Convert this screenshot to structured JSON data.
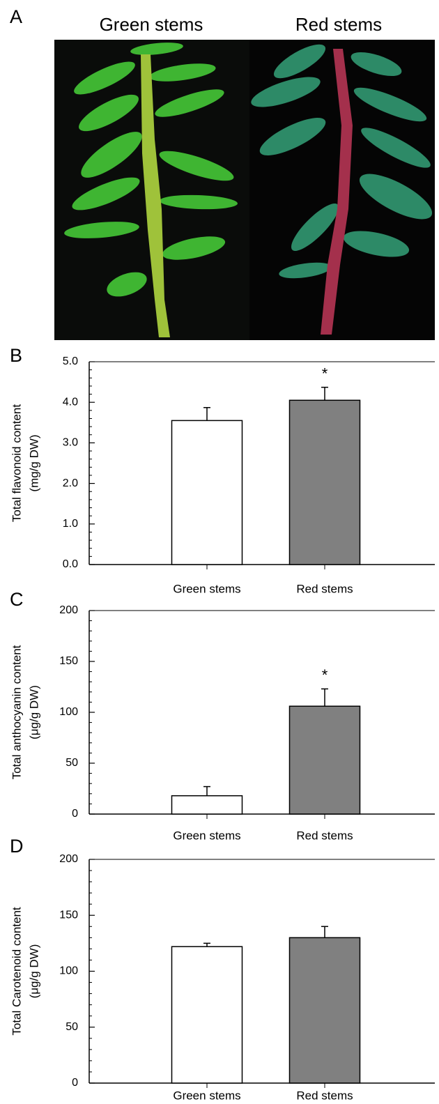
{
  "panel_a": {
    "label": "A",
    "captions": [
      "Green stems",
      "Red stems"
    ]
  },
  "chart_data": [
    {
      "type": "bar",
      "panel_label": "B",
      "y_label": [
        "Total flavonoid content",
        "(mg/g DW)"
      ],
      "categories": [
        "Green stems",
        "Red stems"
      ],
      "values": [
        3.55,
        4.05
      ],
      "errors": [
        0.32,
        0.32
      ],
      "colors": [
        "#ffffff",
        "#808080"
      ],
      "value_annotations": [
        null,
        "*"
      ],
      "ylim": [
        0,
        5
      ],
      "yticks": [
        {
          "value": 0,
          "label": "0.0"
        },
        {
          "value": 1,
          "label": "1.0"
        },
        {
          "value": 2,
          "label": "2.0"
        },
        {
          "value": 3,
          "label": "3.0"
        },
        {
          "value": 4,
          "label": "4.0"
        },
        {
          "value": 5,
          "label": "5.0"
        }
      ],
      "minor_yticks": [
        0.2,
        0.4,
        0.6,
        0.8,
        1.2,
        1.4,
        1.6,
        1.8,
        2.2,
        2.4,
        2.6,
        2.8,
        3.2,
        3.4,
        3.6,
        3.8,
        4.2,
        4.4,
        4.6,
        4.8
      ]
    },
    {
      "type": "bar",
      "panel_label": "C",
      "y_label": [
        "Total anthocyanin content",
        "(μg/g DW)"
      ],
      "categories": [
        "Green stems",
        "Red stems"
      ],
      "values": [
        18,
        106
      ],
      "errors": [
        9,
        17
      ],
      "colors": [
        "#ffffff",
        "#808080"
      ],
      "value_annotations": [
        null,
        "*"
      ],
      "ylim": [
        0,
        200
      ],
      "yticks": [
        0,
        50,
        100,
        150,
        200
      ],
      "minor_yticks": [
        10,
        20,
        30,
        40,
        60,
        70,
        80,
        90,
        110,
        120,
        130,
        140,
        160,
        170,
        180,
        190
      ]
    },
    {
      "type": "bar",
      "panel_label": "D",
      "y_label": [
        "Total Carotenoid content",
        "(μg/g DW)"
      ],
      "categories": [
        "Green stems",
        "Red stems"
      ],
      "values": [
        122,
        130
      ],
      "errors": [
        3,
        10
      ],
      "colors": [
        "#ffffff",
        "#808080"
      ],
      "ylim": [
        0,
        200
      ],
      "yticks": [
        0,
        50,
        100,
        150,
        200
      ],
      "minor_yticks": [
        10,
        20,
        30,
        40,
        60,
        70,
        80,
        90,
        110,
        120,
        130,
        140,
        160,
        170,
        180,
        190
      ]
    }
  ]
}
